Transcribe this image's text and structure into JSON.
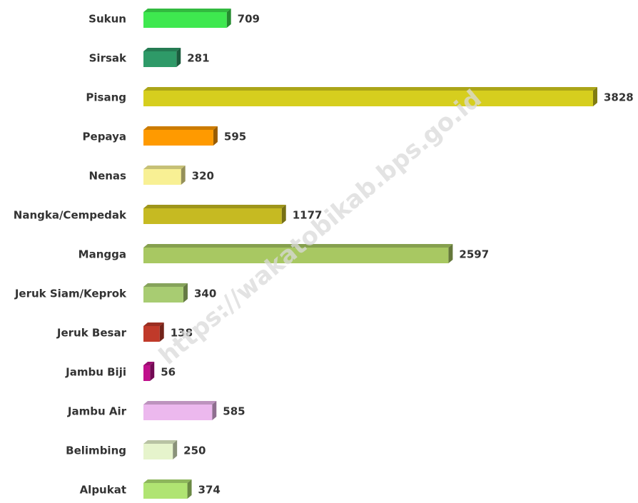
{
  "chart_data": {
    "type": "bar",
    "orientation": "horizontal",
    "categories": [
      "Sukun",
      "Sirsak",
      "Pisang",
      "Pepaya",
      "Nenas",
      "Nangka/Cempedak",
      "Mangga",
      "Jeruk Siam/Keprok",
      "Jeruk Besar",
      "Jambu Biji",
      "Jambu Air",
      "Belimbing",
      "Alpukat"
    ],
    "values": [
      709,
      281,
      3828,
      595,
      320,
      1177,
      2597,
      340,
      138,
      56,
      585,
      250,
      374
    ],
    "colors": [
      "#3ee84f",
      "#2e9a68",
      "#d6ce1e",
      "#ff9a00",
      "#f8f094",
      "#c6ba22",
      "#a8c862",
      "#a8cc72",
      "#c03a2a",
      "#c0108c",
      "#ecb8ee",
      "#e6f4cc",
      "#b0e472"
    ]
  },
  "watermark": "https://wakatobikab.bps.go.id"
}
